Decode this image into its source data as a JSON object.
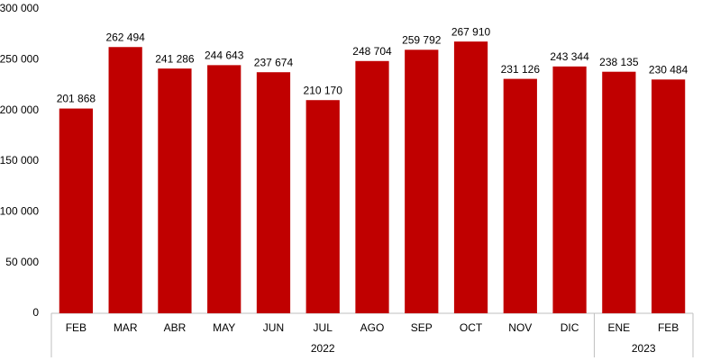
{
  "chart_data": {
    "type": "bar",
    "color": "#c00000",
    "groups": [
      {
        "label": "2022",
        "categories": [
          "FEB",
          "MAR",
          "ABR",
          "MAY",
          "JUN",
          "JUL",
          "AGO",
          "SEP",
          "OCT",
          "NOV",
          "DIC"
        ]
      },
      {
        "label": "2023",
        "categories": [
          "ENE",
          "FEB"
        ]
      }
    ],
    "values": [
      201868,
      262494,
      241286,
      244643,
      237674,
      210170,
      248704,
      259792,
      267910,
      231126,
      243344,
      238135,
      230484
    ],
    "value_labels": [
      "201 868",
      "262 494",
      "241 286",
      "244 643",
      "237 674",
      "210 170",
      "248 704",
      "259 792",
      "267 910",
      "231 126",
      "243 344",
      "238 135",
      "230 484"
    ],
    "ylim": [
      0,
      300000
    ],
    "yticks": [
      {
        "value": 0,
        "label": "0"
      },
      {
        "value": 50000,
        "label": "50 000"
      },
      {
        "value": 100000,
        "label": "100 000"
      },
      {
        "value": 150000,
        "label": "150 000"
      },
      {
        "value": 200000,
        "label": "200 000"
      },
      {
        "value": 250000,
        "label": "250 000"
      },
      {
        "value": 300000,
        "label": "300 000"
      }
    ]
  }
}
